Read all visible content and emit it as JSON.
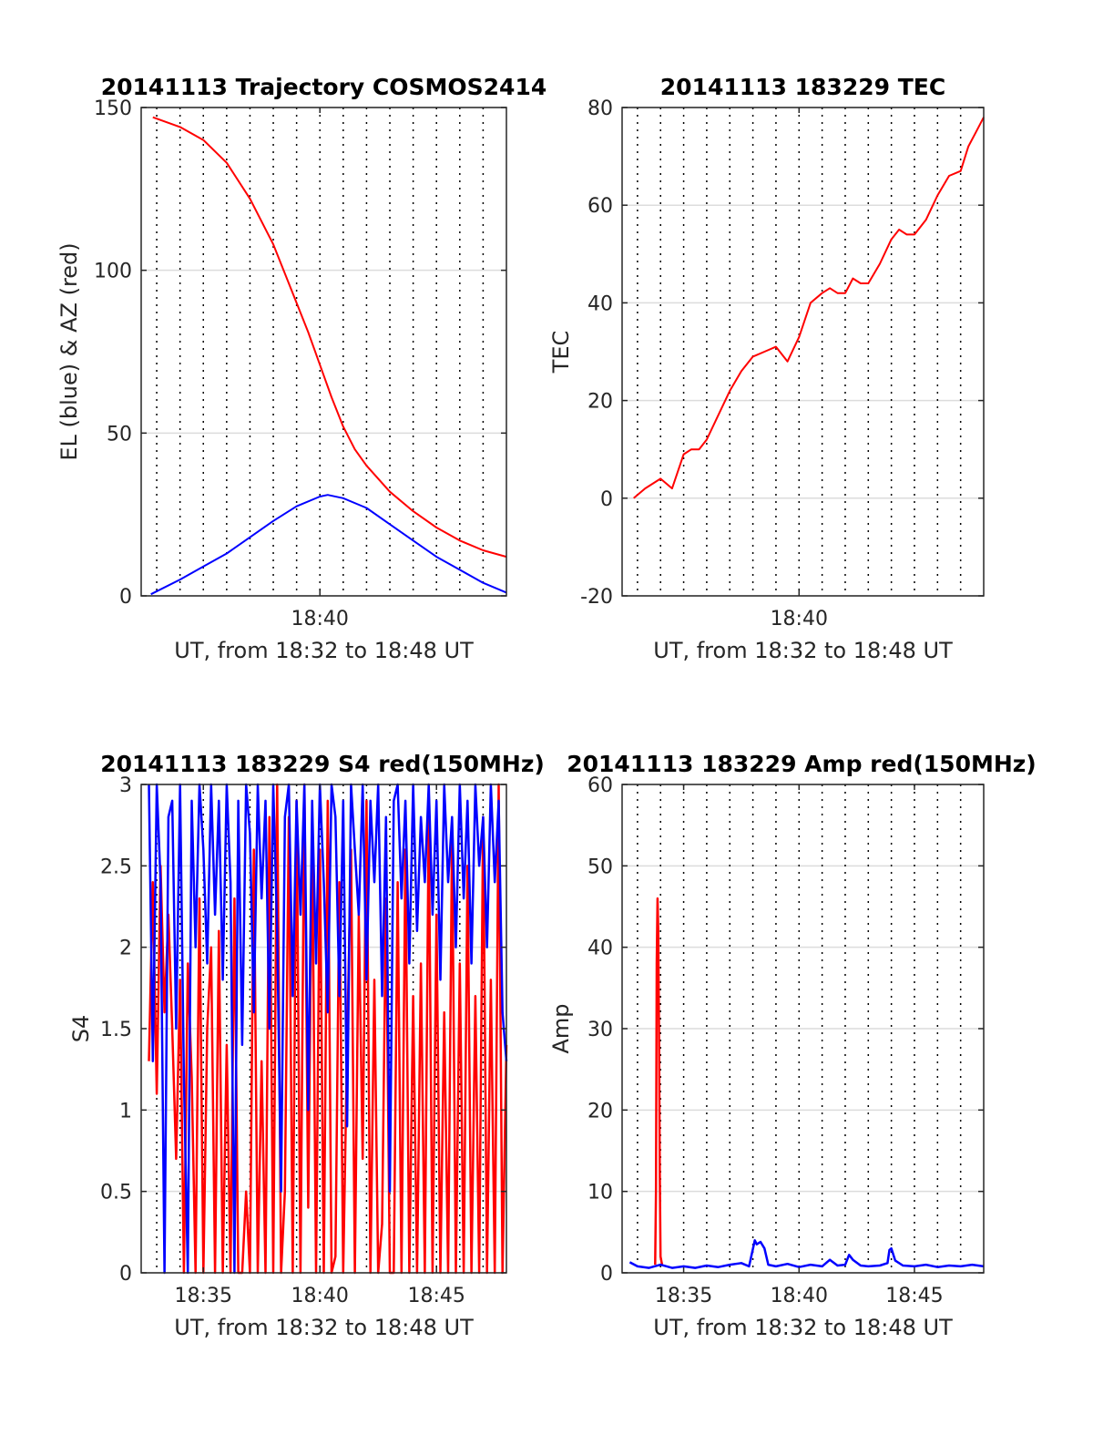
{
  "colors": {
    "el": "#0000ff",
    "az": "#ff0000",
    "tec": "#ff0000",
    "s4_red": "#ff0000",
    "s4_blue": "#0000ff",
    "amp_red": "#ff0000",
    "amp_blue": "#0000ff"
  },
  "chart_data": [
    {
      "id": "trajectory",
      "type": "line",
      "title": "20141113 Trajectory COSMOS2414",
      "xlabel": "UT, from 18:32 to 18:48 UT",
      "ylabel": "EL (blue) & AZ (red)",
      "xlim": [
        "18:32:20",
        "18:48:00"
      ],
      "ylim": [
        0,
        150
      ],
      "yticks": [
        "0",
        "50",
        "100",
        "150"
      ],
      "xticks": [
        {
          "t": "18:40:00",
          "label": "18:40"
        }
      ],
      "grid": "horizontal solid at y ticks, vertical dotted per minute",
      "series": [
        {
          "color": "az",
          "x": [
            "18:32:50",
            "18:34:00",
            "18:35:00",
            "18:36:00",
            "18:37:00",
            "18:38:00",
            "18:38:30",
            "18:39:00",
            "18:39:30",
            "18:40:00",
            "18:40:30",
            "18:41:00",
            "18:41:30",
            "18:42:00",
            "18:43:00",
            "18:44:00",
            "18:45:00",
            "18:46:00",
            "18:47:00",
            "18:48:00"
          ],
          "y": [
            147,
            144,
            140,
            133,
            122,
            108,
            99,
            90,
            81,
            71,
            61,
            52,
            45,
            40,
            32,
            26,
            21,
            17,
            14,
            12
          ]
        },
        {
          "color": "el",
          "x": [
            "18:32:45",
            "18:34:00",
            "18:35:00",
            "18:36:00",
            "18:37:00",
            "18:38:00",
            "18:39:00",
            "18:40:00",
            "18:40:20",
            "18:41:00",
            "18:42:00",
            "18:43:00",
            "18:44:00",
            "18:45:00",
            "18:46:00",
            "18:47:00",
            "18:48:00"
          ],
          "y": [
            0.5,
            5,
            9,
            13,
            18,
            23,
            27.5,
            30.5,
            31,
            30,
            27,
            22,
            17,
            12,
            8,
            4,
            1
          ]
        }
      ]
    },
    {
      "id": "tec",
      "type": "line",
      "title": "20141113 183229 TEC",
      "xlabel": "UT, from 18:32 to 18:48 UT",
      "ylabel": "TEC",
      "xlim": [
        "18:32:20",
        "18:48:00"
      ],
      "ylim": [
        -20,
        80
      ],
      "yticks": [
        "-20",
        "0",
        "20",
        "40",
        "60",
        "80"
      ],
      "xticks": [
        {
          "t": "18:40:00",
          "label": "18:40"
        }
      ],
      "grid": "horizontal solid at y ticks, vertical dotted per minute",
      "series": [
        {
          "color": "tec",
          "x": [
            "18:32:50",
            "18:33:20",
            "18:34:00",
            "18:34:30",
            "18:35:00",
            "18:35:20",
            "18:35:40",
            "18:36:00",
            "18:36:30",
            "18:37:00",
            "18:37:30",
            "18:38:00",
            "18:38:30",
            "18:39:00",
            "18:39:30",
            "18:40:00",
            "18:40:30",
            "18:41:00",
            "18:41:20",
            "18:41:40",
            "18:42:00",
            "18:42:20",
            "18:42:40",
            "18:43:00",
            "18:43:30",
            "18:44:00",
            "18:44:20",
            "18:44:40",
            "18:45:00",
            "18:45:30",
            "18:46:00",
            "18:46:30",
            "18:47:00",
            "18:47:20",
            "18:47:40",
            "18:48:00"
          ],
          "y": [
            0,
            2,
            4,
            2,
            9,
            10,
            10,
            12,
            17,
            22,
            26,
            29,
            30,
            31,
            28,
            33,
            40,
            42,
            43,
            42,
            42,
            45,
            44,
            44,
            48,
            53,
            55,
            54,
            54,
            57,
            62,
            66,
            67,
            72,
            75,
            78
          ]
        }
      ]
    },
    {
      "id": "s4",
      "type": "line",
      "title": "20141113 183229 S4 red(150MHz)",
      "xlabel": "UT, from 18:32 to 18:48 UT",
      "ylabel": "S4",
      "xlim": [
        "18:32:20",
        "18:48:00"
      ],
      "ylim": [
        0,
        3
      ],
      "yticks": [
        "0",
        "0.5",
        "1",
        "1.5",
        "2",
        "2.5",
        "3"
      ],
      "xticks": [
        {
          "t": "18:35:00",
          "label": "18:35"
        },
        {
          "t": "18:40:00",
          "label": "18:40"
        },
        {
          "t": "18:45:00",
          "label": "18:45"
        }
      ],
      "grid": "horizontal solid at y ticks, vertical dotted per minute",
      "series": [
        {
          "color": "s4_red",
          "x": [
            "18:32:40",
            "18:32:50",
            "18:33:00",
            "18:33:10",
            "18:33:20",
            "18:33:30",
            "18:33:40",
            "18:33:50",
            "18:34:00",
            "18:34:10",
            "18:34:20",
            "18:34:30",
            "18:34:40",
            "18:34:50",
            "18:35:00",
            "18:35:10",
            "18:35:20",
            "18:35:30",
            "18:35:40",
            "18:35:50",
            "18:36:00",
            "18:36:10",
            "18:36:20",
            "18:36:30",
            "18:36:40",
            "18:36:50",
            "18:37:00",
            "18:37:10",
            "18:37:20",
            "18:37:30",
            "18:37:40",
            "18:37:50",
            "18:38:00",
            "18:38:10",
            "18:38:20",
            "18:38:30",
            "18:38:40",
            "18:38:50",
            "18:39:00",
            "18:39:10",
            "18:39:20",
            "18:39:30",
            "18:39:40",
            "18:39:50",
            "18:40:00",
            "18:40:10",
            "18:40:20",
            "18:40:30",
            "18:40:40",
            "18:40:50",
            "18:41:00",
            "18:41:10",
            "18:41:20",
            "18:41:30",
            "18:41:40",
            "18:41:50",
            "18:42:00",
            "18:42:10",
            "18:42:20",
            "18:42:30",
            "18:42:40",
            "18:42:50",
            "18:43:00",
            "18:43:10",
            "18:43:20",
            "18:43:30",
            "18:43:40",
            "18:43:50",
            "18:44:00",
            "18:44:10",
            "18:44:20",
            "18:44:30",
            "18:44:40",
            "18:44:50",
            "18:45:00",
            "18:45:10",
            "18:45:20",
            "18:45:30",
            "18:45:40",
            "18:45:50",
            "18:46:00",
            "18:46:10",
            "18:46:20",
            "18:46:30",
            "18:46:40",
            "18:46:50",
            "18:47:00",
            "18:47:10",
            "18:47:20",
            "18:47:30",
            "18:47:40",
            "18:47:50",
            "18:48:00"
          ],
          "y": [
            1.3,
            2.4,
            1.1,
            2.5,
            1.6,
            2.2,
            1.5,
            0.7,
            1.8,
            0,
            1.9,
            1.2,
            0,
            2.3,
            0,
            1.5,
            2.0,
            0,
            2.1,
            0,
            1.4,
            0,
            2.3,
            0,
            0,
            0.5,
            0,
            2.6,
            0,
            1.3,
            0,
            2.8,
            0,
            3,
            0,
            0.5,
            2.8,
            0,
            2.9,
            0,
            3,
            0.4,
            2.7,
            0,
            2.6,
            0,
            2.9,
            0,
            0.1,
            2.4,
            0,
            1.4,
            2.6,
            0,
            2.2,
            0.7,
            2.9,
            0,
            1.8,
            0,
            0.3,
            2.3,
            0,
            0,
            2.4,
            0,
            2.6,
            0,
            1.7,
            0,
            1.9,
            0,
            2.8,
            0,
            2.2,
            0,
            1.6,
            0,
            2.7,
            0,
            1.9,
            0,
            2.5,
            0,
            1.7,
            0,
            2.8,
            0,
            1.8,
            0,
            3,
            0,
            1.4
          ]
        },
        {
          "color": "s4_blue",
          "x": [
            "18:32:40",
            "18:32:50",
            "18:33:00",
            "18:33:10",
            "18:33:20",
            "18:33:30",
            "18:33:40",
            "18:33:50",
            "18:34:00",
            "18:34:10",
            "18:34:20",
            "18:34:30",
            "18:34:40",
            "18:34:50",
            "18:35:00",
            "18:35:10",
            "18:35:20",
            "18:35:30",
            "18:35:40",
            "18:35:50",
            "18:36:00",
            "18:36:10",
            "18:36:20",
            "18:36:30",
            "18:36:40",
            "18:36:50",
            "18:37:00",
            "18:37:10",
            "18:37:20",
            "18:37:30",
            "18:37:40",
            "18:37:50",
            "18:38:00",
            "18:38:10",
            "18:38:20",
            "18:38:30",
            "18:38:40",
            "18:38:50",
            "18:39:00",
            "18:39:10",
            "18:39:20",
            "18:39:30",
            "18:39:40",
            "18:39:50",
            "18:40:00",
            "18:40:10",
            "18:40:20",
            "18:40:30",
            "18:40:40",
            "18:40:50",
            "18:41:00",
            "18:41:10",
            "18:41:20",
            "18:41:30",
            "18:41:40",
            "18:41:50",
            "18:42:00",
            "18:42:10",
            "18:42:20",
            "18:42:30",
            "18:42:40",
            "18:42:50",
            "18:43:00",
            "18:43:10",
            "18:43:20",
            "18:43:30",
            "18:43:40",
            "18:43:50",
            "18:44:00",
            "18:44:10",
            "18:44:20",
            "18:44:30",
            "18:44:40",
            "18:44:50",
            "18:45:00",
            "18:45:10",
            "18:45:20",
            "18:45:30",
            "18:45:40",
            "18:45:50",
            "18:46:00",
            "18:46:10",
            "18:46:20",
            "18:46:30",
            "18:46:40",
            "18:46:50",
            "18:47:00",
            "18:47:10",
            "18:47:20",
            "18:47:30",
            "18:47:40",
            "18:47:50",
            "18:48:00"
          ],
          "y": [
            3,
            1.3,
            3,
            2.4,
            0,
            2.8,
            2.9,
            1.5,
            3,
            1.2,
            0,
            2.9,
            2.0,
            3,
            2.6,
            1.9,
            3,
            2.2,
            2.9,
            1.8,
            3,
            2.4,
            0,
            2.9,
            1.4,
            3,
            2.7,
            1.6,
            3,
            2.3,
            2.9,
            1.5,
            3,
            2.1,
            0.5,
            2.8,
            3,
            1.7,
            2.9,
            2.2,
            3,
            1.0,
            2.9,
            1.9,
            3,
            2.4,
            1.6,
            3,
            2.8,
            1.7,
            2.9,
            0.9,
            3,
            2.6,
            2.2,
            3,
            1.8,
            2.9,
            2.4,
            3,
            1.7,
            2.8,
            0.5,
            2.9,
            3,
            2.3,
            2.9,
            1.9,
            3,
            2.1,
            2.8,
            2.4,
            3,
            2.2,
            2.9,
            1.8,
            3,
            2.4,
            2.8,
            2.0,
            3,
            2.3,
            2.9,
            1.9,
            3,
            2.5,
            2.8,
            2.0,
            3,
            2.4,
            2.9,
            1.6,
            1.3
          ]
        }
      ]
    },
    {
      "id": "amp",
      "type": "line",
      "title": "20141113 183229 Amp red(150MHz)",
      "xlabel": "UT, from 18:32 to 18:48 UT",
      "ylabel": "Amp",
      "xlim": [
        "18:32:20",
        "18:48:00"
      ],
      "ylim": [
        0,
        60
      ],
      "yticks": [
        "0",
        "10",
        "20",
        "30",
        "40",
        "50",
        "60"
      ],
      "xticks": [
        {
          "t": "18:35:00",
          "label": "18:35"
        },
        {
          "t": "18:40:00",
          "label": "18:40"
        },
        {
          "t": "18:45:00",
          "label": "18:45"
        }
      ],
      "grid": "horizontal solid at y ticks, vertical dotted per minute",
      "series": [
        {
          "color": "amp_red",
          "x": [
            "18:33:46",
            "18:33:48",
            "18:33:50",
            "18:33:52",
            "18:33:54",
            "18:33:56",
            "18:33:58",
            "18:34:00",
            "18:34:04"
          ],
          "y": [
            1,
            10,
            38,
            46,
            42,
            30,
            12,
            2,
            1
          ]
        },
        {
          "color": "amp_blue",
          "x": [
            "18:32:40",
            "18:33:00",
            "18:33:30",
            "18:34:00",
            "18:34:30",
            "18:35:00",
            "18:35:30",
            "18:36:00",
            "18:36:30",
            "18:37:00",
            "18:37:30",
            "18:37:50",
            "18:38:05",
            "18:38:10",
            "18:38:20",
            "18:38:30",
            "18:38:40",
            "18:39:00",
            "18:39:30",
            "18:40:00",
            "18:40:30",
            "18:41:00",
            "18:41:20",
            "18:41:40",
            "18:42:00",
            "18:42:10",
            "18:42:20",
            "18:42:40",
            "18:43:00",
            "18:43:30",
            "18:43:50",
            "18:43:55",
            "18:44:00",
            "18:44:10",
            "18:44:30",
            "18:45:00",
            "18:45:30",
            "18:46:00",
            "18:46:30",
            "18:47:00",
            "18:47:30",
            "18:48:00"
          ],
          "y": [
            1.3,
            0.8,
            0.6,
            1,
            0.6,
            0.8,
            0.6,
            0.9,
            0.7,
            1,
            1.2,
            0.8,
            4,
            3.5,
            3.8,
            3,
            1,
            0.8,
            1.1,
            0.7,
            1,
            0.8,
            1.6,
            0.9,
            1,
            2.2,
            1.6,
            0.9,
            0.8,
            0.9,
            1.2,
            2.8,
            3,
            1.5,
            0.9,
            0.8,
            1,
            0.7,
            0.9,
            0.8,
            1,
            0.8
          ]
        }
      ]
    }
  ]
}
